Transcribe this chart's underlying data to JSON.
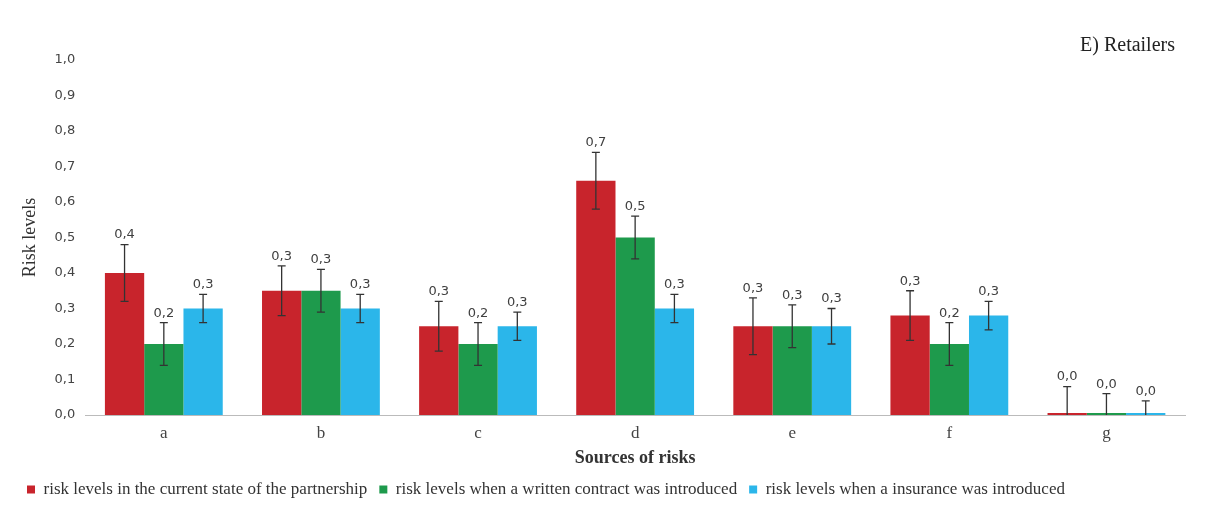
{
  "chart_data": {
    "type": "bar",
    "title": "E) Retailers",
    "xlabel": "Sources of risks",
    "ylabel": "Risk levels",
    "categories": [
      "a",
      "b",
      "c",
      "d",
      "e",
      "f",
      "g"
    ],
    "series": [
      {
        "name": "risk levels in the current state of the partnership",
        "color": "#c8242c",
        "values": [
          0.4,
          0.35,
          0.25,
          0.66,
          0.25,
          0.28,
          0
        ],
        "errors": [
          0.08,
          0.07,
          0.07,
          0.08,
          0.08,
          0.07,
          [
            0,
            0.08
          ]
        ],
        "value_labels": [
          "0,4",
          "0,3",
          "0,3",
          "0,7",
          "0,3",
          "0,3",
          "0,0"
        ]
      },
      {
        "name": "risk levels when a written contract was introduced",
        "color": "#1e9a4c",
        "values": [
          0.2,
          0.35,
          0.2,
          0.5,
          0.25,
          0.2,
          0
        ],
        "errors": [
          0.06,
          0.06,
          0.06,
          0.06,
          0.06,
          0.06,
          [
            0,
            0.06
          ]
        ],
        "value_labels": [
          "0,2",
          "0,3",
          "0,2",
          "0,5",
          "0,3",
          "0,2",
          "0,0"
        ]
      },
      {
        "name": "risk levels when a insurance was introduced",
        "color": "#2bb6ea",
        "values": [
          0.3,
          0.3,
          0.25,
          0.3,
          0.25,
          0.28,
          0
        ],
        "errors": [
          0.04,
          0.04,
          0.04,
          0.04,
          0.05,
          0.04,
          [
            0,
            0.04
          ]
        ],
        "value_labels": [
          "0,3",
          "0,3",
          "0,3",
          "0,3",
          "0,3",
          "0,3",
          "0,0"
        ]
      }
    ],
    "ylim": [
      0,
      1
    ],
    "yticks": [
      {
        "value": 0,
        "label": "0,0"
      },
      {
        "value": 0.1,
        "label": "0,1"
      },
      {
        "value": 0.2,
        "label": "0,2"
      },
      {
        "value": 0.3,
        "label": "0,3"
      },
      {
        "value": 0.4,
        "label": "0,4"
      },
      {
        "value": 0.5,
        "label": "0,5"
      },
      {
        "value": 0.6,
        "label": "0,6"
      },
      {
        "value": 0.7,
        "label": "0,7"
      },
      {
        "value": 0.8,
        "label": "0,8"
      },
      {
        "value": 0.9,
        "label": "0,9"
      },
      {
        "value": 1,
        "label": "1,0"
      }
    ],
    "grid": false,
    "legend": "bottom"
  }
}
